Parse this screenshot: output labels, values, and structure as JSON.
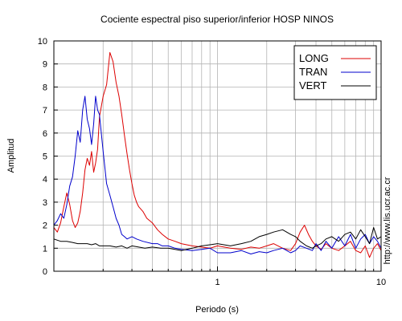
{
  "chart_data": {
    "type": "line",
    "title": "Cociente espectral piso superior/inferior  HOSP NINOS",
    "xlabel": "Periodo (s)",
    "ylabel": "Amplitud",
    "x_scale": "log",
    "xlim": [
      0.1,
      10
    ],
    "ylim": [
      0,
      10
    ],
    "y_ticks": [
      0,
      1,
      2,
      3,
      4,
      5,
      6,
      7,
      8,
      9,
      10
    ],
    "x_tick_labels": [
      {
        "value": 1,
        "label": "1"
      },
      {
        "value": 10,
        "label": "10"
      }
    ],
    "grid": true,
    "legend_position": "top-right",
    "side_text": "http://www.lis.ucr.ac.cr",
    "series": [
      {
        "name": "LONG",
        "color": "#dd0000",
        "x": [
          0.1,
          0.105,
          0.11,
          0.115,
          0.12,
          0.125,
          0.13,
          0.135,
          0.14,
          0.145,
          0.15,
          0.155,
          0.16,
          0.165,
          0.17,
          0.175,
          0.18,
          0.185,
          0.19,
          0.2,
          0.21,
          0.22,
          0.23,
          0.24,
          0.25,
          0.26,
          0.27,
          0.28,
          0.29,
          0.3,
          0.31,
          0.32,
          0.33,
          0.35,
          0.37,
          0.4,
          0.43,
          0.46,
          0.5,
          0.55,
          0.6,
          0.7,
          0.8,
          0.9,
          1,
          1.2,
          1.4,
          1.6,
          1.8,
          2,
          2.2,
          2.5,
          2.8,
          3,
          3.2,
          3.4,
          3.6,
          3.8,
          4,
          4.3,
          4.6,
          5,
          5.5,
          6,
          6.5,
          7,
          7.5,
          8,
          8.5,
          9,
          9.5,
          10
        ],
        "y": [
          1.9,
          1.7,
          2.1,
          2.8,
          3.4,
          2.9,
          2.2,
          1.9,
          2.1,
          2.6,
          3.4,
          4.4,
          4.9,
          4.6,
          5.2,
          4.3,
          4.7,
          5.3,
          6.7,
          7.6,
          8.1,
          9.5,
          9.1,
          8.2,
          7.6,
          6.8,
          5.9,
          5.1,
          4.4,
          3.8,
          3.3,
          3.0,
          2.8,
          2.6,
          2.3,
          2.1,
          1.8,
          1.6,
          1.4,
          1.3,
          1.2,
          1.1,
          1.05,
          1.0,
          1.1,
          1.0,
          0.95,
          1.05,
          1.0,
          1.1,
          1.2,
          1.0,
          0.9,
          1.2,
          1.7,
          2.0,
          1.6,
          1.3,
          1.1,
          0.95,
          1.2,
          1.0,
          0.9,
          1.1,
          1.3,
          0.9,
          0.8,
          1.1,
          0.6,
          1.0,
          1.2,
          0.9
        ]
      },
      {
        "name": "TRAN",
        "color": "#0000cc",
        "x": [
          0.1,
          0.105,
          0.11,
          0.115,
          0.12,
          0.125,
          0.13,
          0.135,
          0.14,
          0.145,
          0.15,
          0.155,
          0.16,
          0.165,
          0.17,
          0.175,
          0.18,
          0.185,
          0.19,
          0.2,
          0.21,
          0.22,
          0.23,
          0.24,
          0.25,
          0.26,
          0.27,
          0.28,
          0.3,
          0.32,
          0.35,
          0.4,
          0.43,
          0.46,
          0.5,
          0.55,
          0.6,
          0.7,
          0.8,
          0.9,
          1,
          1.2,
          1.4,
          1.6,
          1.8,
          2,
          2.2,
          2.5,
          2.8,
          3,
          3.2,
          3.5,
          3.8,
          4,
          4.3,
          4.6,
          5,
          5.5,
          6,
          6.5,
          7,
          7.5,
          8,
          8.5,
          9,
          9.5,
          10
        ],
        "y": [
          2.0,
          2.2,
          2.5,
          2.3,
          2.9,
          3.7,
          4.1,
          5.0,
          6.1,
          5.6,
          7.0,
          7.6,
          6.6,
          6.2,
          5.5,
          6.4,
          7.6,
          7.0,
          6.8,
          5.2,
          3.8,
          3.3,
          2.8,
          2.3,
          2.0,
          1.6,
          1.5,
          1.4,
          1.5,
          1.4,
          1.3,
          1.2,
          1.2,
          1.1,
          1.1,
          1.0,
          0.95,
          0.9,
          0.95,
          1.0,
          0.8,
          0.8,
          0.9,
          0.75,
          0.85,
          0.8,
          0.9,
          1.0,
          0.8,
          0.9,
          1.1,
          1.0,
          0.9,
          1.2,
          0.9,
          1.3,
          1.0,
          1.5,
          1.1,
          1.6,
          1.0,
          1.4,
          1.6,
          1.2,
          1.5,
          1.3,
          1.0
        ]
      },
      {
        "name": "VERT",
        "color": "#000000",
        "x": [
          0.1,
          0.11,
          0.12,
          0.13,
          0.14,
          0.15,
          0.16,
          0.17,
          0.18,
          0.19,
          0.2,
          0.22,
          0.24,
          0.26,
          0.28,
          0.3,
          0.33,
          0.36,
          0.4,
          0.45,
          0.5,
          0.55,
          0.6,
          0.7,
          0.8,
          0.9,
          1,
          1.2,
          1.4,
          1.6,
          1.8,
          2,
          2.2,
          2.5,
          2.8,
          3,
          3.2,
          3.5,
          3.8,
          4,
          4.3,
          4.6,
          5,
          5.5,
          6,
          6.5,
          7,
          7.5,
          8,
          8.5,
          9,
          9.5,
          10
        ],
        "y": [
          1.4,
          1.3,
          1.3,
          1.25,
          1.2,
          1.2,
          1.2,
          1.15,
          1.2,
          1.1,
          1.1,
          1.1,
          1.05,
          1.1,
          1.0,
          1.1,
          1.05,
          1.0,
          1.05,
          1.0,
          1.0,
          0.95,
          0.9,
          1.0,
          1.1,
          1.15,
          1.2,
          1.1,
          1.2,
          1.3,
          1.5,
          1.6,
          1.7,
          1.8,
          1.6,
          1.5,
          1.3,
          1.1,
          1.0,
          1.1,
          1.2,
          1.4,
          1.5,
          1.3,
          1.6,
          1.7,
          1.4,
          1.8,
          1.5,
          1.2,
          1.9,
          1.4,
          1.5
        ]
      }
    ]
  }
}
